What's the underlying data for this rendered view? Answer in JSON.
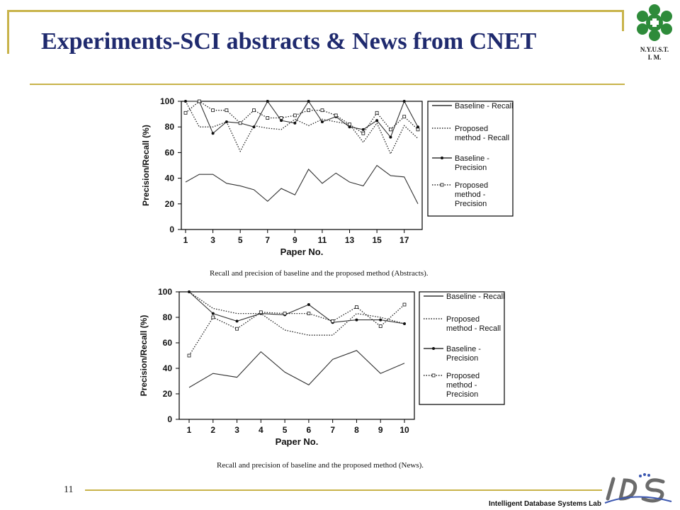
{
  "slide": {
    "title": "Experiments-SCI abstracts & News from CNET",
    "page_number": "11",
    "footer_lab": "Intelligent Database Systems Lab",
    "logo_text_line1": "N.Y.U.S.T.",
    "logo_text_line2": "I. M.",
    "accent_color": "#c8b34a",
    "title_color": "#1f2a6e"
  },
  "chart_data": [
    {
      "type": "line",
      "caption": "Recall and precision of baseline and the proposed method (Abstracts).",
      "xlabel": "Paper No.",
      "ylabel": "Precision/Recall (%)",
      "x": [
        1,
        2,
        3,
        4,
        5,
        6,
        7,
        8,
        9,
        10,
        11,
        12,
        13,
        14,
        15,
        16,
        17,
        18
      ],
      "x_ticks": [
        1,
        3,
        5,
        7,
        9,
        11,
        13,
        15,
        17
      ],
      "ylim": [
        0,
        100
      ],
      "y_ticks": [
        0,
        20,
        40,
        60,
        80,
        100
      ],
      "series": [
        {
          "name": "Baseline - Recall",
          "style": "solid",
          "marker": "none",
          "values": [
            37,
            43,
            43,
            36,
            34,
            31,
            22,
            32,
            27,
            47,
            36,
            44,
            37,
            34,
            50,
            42,
            41,
            20
          ]
        },
        {
          "name": "Proposed method - Recall",
          "style": "dotted",
          "marker": "none",
          "values": [
            100,
            80,
            80,
            84,
            61,
            81,
            79,
            78,
            86,
            81,
            86,
            84,
            82,
            68,
            83,
            59,
            81,
            71
          ]
        },
        {
          "name": "Baseline - Precision",
          "style": "solid",
          "marker": "dot",
          "values": [
            100,
            100,
            75,
            84,
            83,
            80,
            100,
            85,
            83,
            100,
            84,
            88,
            80,
            78,
            85,
            72,
            100,
            80
          ]
        },
        {
          "name": "Proposed method - Precision",
          "style": "dotted",
          "marker": "square",
          "values": [
            91,
            100,
            93,
            93,
            83,
            93,
            87,
            87,
            89,
            93,
            93,
            89,
            82,
            75,
            91,
            78,
            88,
            78
          ]
        }
      ],
      "legend": [
        "Baseline - Recall",
        "Proposed method - Recall",
        "Baseline - Precision",
        "Proposed method - Precision"
      ]
    },
    {
      "type": "line",
      "caption": "Recall and precision of baseline and the proposed method (News).",
      "xlabel": "Paper No.",
      "ylabel": "Precision/Recall (%)",
      "x": [
        1,
        2,
        3,
        4,
        5,
        6,
        7,
        8,
        9,
        10
      ],
      "x_ticks": [
        1,
        2,
        3,
        4,
        5,
        6,
        7,
        8,
        9,
        10
      ],
      "ylim": [
        0,
        100
      ],
      "y_ticks": [
        0,
        20,
        40,
        60,
        80,
        100
      ],
      "series": [
        {
          "name": "Baseline - Recall",
          "style": "solid",
          "marker": "none",
          "values": [
            25,
            36,
            33,
            53,
            37,
            27,
            47,
            54,
            36,
            44
          ]
        },
        {
          "name": "Proposed method - Recall",
          "style": "dotted",
          "marker": "none",
          "values": [
            100,
            87,
            83,
            83,
            70,
            66,
            66,
            83,
            80,
            75
          ]
        },
        {
          "name": "Baseline - Precision",
          "style": "solid",
          "marker": "dot",
          "values": [
            100,
            83,
            77,
            83,
            82,
            90,
            76,
            78,
            78,
            75
          ]
        },
        {
          "name": "Proposed method - Precision",
          "style": "dotted",
          "marker": "square",
          "values": [
            50,
            80,
            71,
            84,
            83,
            83,
            77,
            88,
            73,
            90
          ]
        }
      ],
      "legend": [
        "Baseline - Recall",
        "Proposed method - Recall",
        "Baseline - Precision",
        "Proposed method - Precision"
      ]
    }
  ]
}
